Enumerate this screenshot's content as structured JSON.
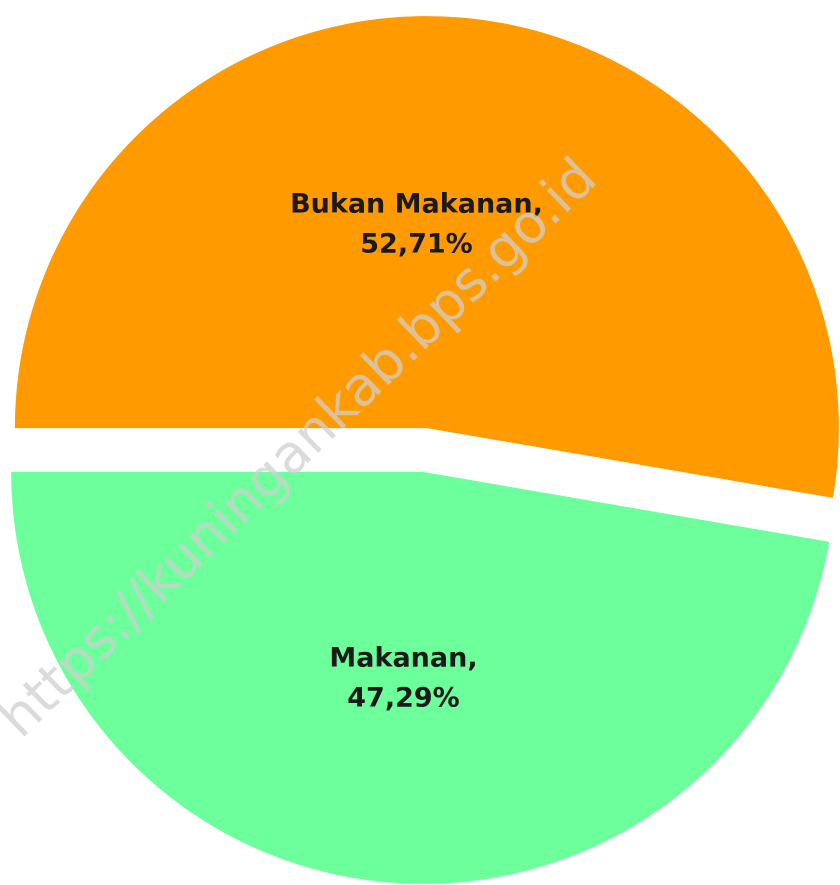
{
  "chart_data": {
    "type": "pie",
    "categories": [
      "Bukan Makanan,",
      "Makanan,"
    ],
    "values": [
      52.71,
      47.29
    ],
    "value_labels": [
      "52,71%",
      "47,29%"
    ],
    "colors": [
      "#ff9a00",
      "#6dff9c"
    ],
    "start_angle": 180,
    "exploded": true,
    "watermark": "https://kuningankab.bps.go.id"
  }
}
